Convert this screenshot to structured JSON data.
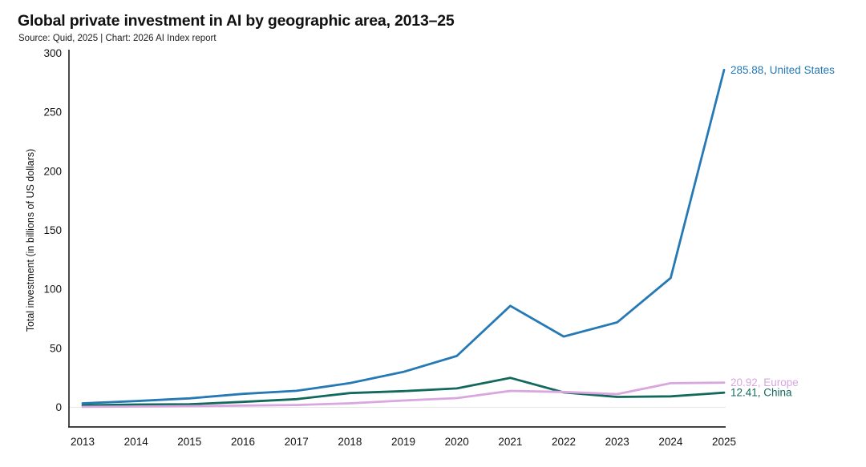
{
  "page": {
    "background": "#ffffff"
  },
  "chart_data": {
    "type": "line",
    "title": "Global private investment in AI by geographic area, 2013–25",
    "subtitle": "Source: Quid, 2025 | Chart: 2026 AI Index report",
    "xlabel": "",
    "ylabel": "Total investment (in billions of US dollars)",
    "categories": [
      "2013",
      "2014",
      "2015",
      "2016",
      "2017",
      "2018",
      "2019",
      "2020",
      "2021",
      "2022",
      "2023",
      "2024",
      "2025"
    ],
    "ylim": [
      0,
      300
    ],
    "yticks": [
      0,
      50,
      100,
      150,
      200,
      250,
      300
    ],
    "grid": "zero baseline only",
    "legend_position": "end-of-line labels at right",
    "colors": {
      "axis": "#2a2a2a",
      "zero_gridline": "#e7e7e7",
      "united_states": "#2579b4",
      "europe": "#d9a6e0",
      "china": "#136a5c"
    },
    "series": [
      {
        "id": "united-states",
        "name": "United States",
        "color": "#2579b4",
        "end_label": "285.88, United States",
        "end_value": 285.88,
        "values": [
          3.4,
          5.3,
          7.6,
          11.4,
          14.0,
          20.5,
          30.0,
          43.5,
          86.0,
          60.0,
          72.0,
          109.6,
          285.88
        ]
      },
      {
        "id": "europe",
        "name": "Europe",
        "color": "#d9a6e0",
        "end_label": "20.92, Europe",
        "end_value": 20.92,
        "values": [
          0.4,
          0.7,
          1.0,
          1.5,
          2.0,
          3.4,
          5.8,
          7.8,
          13.9,
          13.0,
          11.2,
          20.4,
          20.92
        ]
      },
      {
        "id": "china",
        "name": "China",
        "color": "#136a5c",
        "end_label": "12.41, China",
        "end_value": 12.41,
        "values": [
          1.7,
          2.4,
          2.6,
          4.6,
          6.9,
          12.1,
          13.7,
          16.0,
          25.0,
          12.6,
          8.8,
          9.3,
          12.41
        ]
      }
    ]
  }
}
